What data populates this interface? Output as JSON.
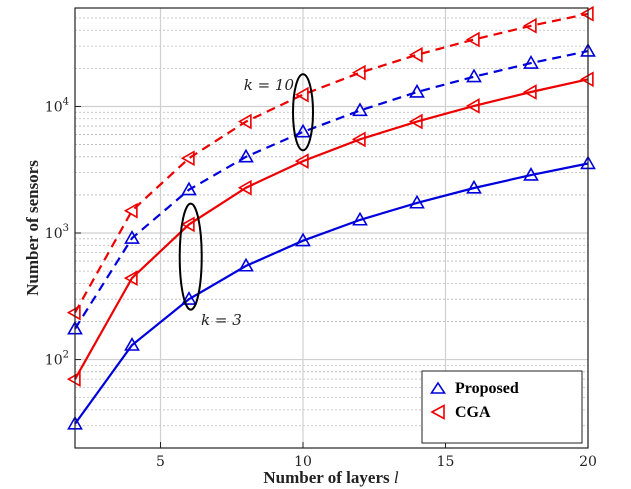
{
  "chart_data": {
    "type": "line",
    "title": "",
    "xlabel": "Number of layers",
    "xlabel_var": "l",
    "ylabel": "Number of sensors",
    "xlim": [
      2,
      20
    ],
    "ylim": [
      20,
      60000
    ],
    "yscale": "log",
    "grid": true,
    "xticks": [
      5,
      10,
      15,
      20
    ],
    "xtick_labels": [
      "5",
      "10",
      "15",
      "20"
    ],
    "yticks": [
      100,
      1000,
      10000
    ],
    "ytick_bases": [
      "10",
      "10",
      "10"
    ],
    "ytick_exps": [
      "2",
      "3",
      "4"
    ],
    "x": [
      2,
      4,
      6,
      8,
      10,
      12,
      14,
      16,
      18,
      20
    ],
    "series": [
      {
        "name": "Proposed, k = 3",
        "method": "Proposed",
        "k": 3,
        "color": "#0000dd",
        "dash": "solid",
        "marker": "triangle-up",
        "values": [
          31,
          130,
          300,
          550,
          870,
          1270,
          1730,
          2270,
          2870,
          3540
        ]
      },
      {
        "name": "CGA, k = 3",
        "method": "CGA",
        "k": 3,
        "color": "#ee0000",
        "dash": "solid",
        "marker": "triangle-left",
        "values": [
          70,
          440,
          1170,
          2280,
          3700,
          5500,
          7600,
          10100,
          13000,
          16400
        ]
      },
      {
        "name": "Proposed, k = 10",
        "method": "Proposed",
        "k": 10,
        "color": "#0000dd",
        "dash": "dashed",
        "marker": "triangle-up",
        "values": [
          175,
          910,
          2200,
          4000,
          6300,
          9300,
          13000,
          17200,
          22000,
          27400
        ]
      },
      {
        "name": "CGA, k = 10",
        "method": "CGA",
        "k": 10,
        "color": "#ee0000",
        "dash": "dashed",
        "marker": "triangle-left",
        "values": [
          235,
          1500,
          3900,
          7600,
          12400,
          18500,
          25600,
          33800,
          43400,
          54000
        ]
      }
    ],
    "annotations": [
      {
        "text": "k = 10",
        "x": 10,
        "y": 9000
      },
      {
        "text": "k = 3",
        "x": 6,
        "y": 650
      }
    ],
    "legend": {
      "position": "bottom-right",
      "entries": [
        {
          "label": "Proposed",
          "color": "#0000dd",
          "marker": "triangle-up"
        },
        {
          "label": "CGA",
          "color": "#ee0000",
          "marker": "triangle-left"
        }
      ]
    }
  }
}
